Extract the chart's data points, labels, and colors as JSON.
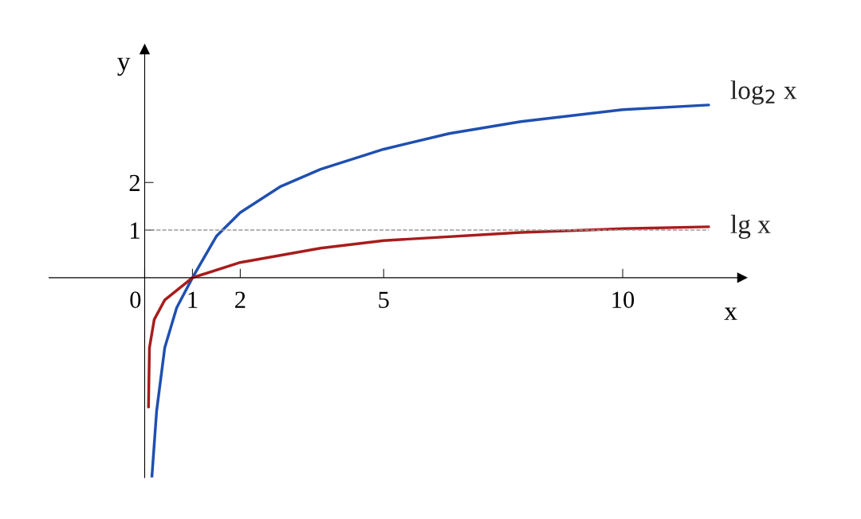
{
  "chart_data": {
    "type": "line",
    "xlabel": "x",
    "ylabel": "y",
    "xlim": [
      -2,
      12.5
    ],
    "ylim": [
      -4.2,
      4.8
    ],
    "xticks": [
      0,
      1,
      2,
      5,
      10
    ],
    "yticks": [
      1,
      2
    ],
    "legend": false,
    "grid": false,
    "line_style": "solid",
    "marker": "none",
    "ref_lines": [
      {
        "axis": "y",
        "value": 1,
        "color": "#999999",
        "line_style": "dashed"
      }
    ],
    "series": [
      {
        "name": "log$_{2}$ x",
        "color": "#1f4fb0",
        "x": [
          0.15,
          0.25,
          0.42,
          0.67,
          1,
          1.5,
          2,
          2.85,
          3.68,
          5,
          6.37,
          7.87,
          10,
          11.8
        ],
        "values": [
          -4.2,
          -2.8,
          -1.47,
          -0.63,
          0,
          0.87,
          1.37,
          1.92,
          2.28,
          2.7,
          3.03,
          3.28,
          3.53,
          3.63
        ]
      },
      {
        "name": "lg x",
        "color": "#a81c1c",
        "x": [
          0.08,
          0.1,
          0.2,
          0.42,
          1,
          2,
          3.68,
          5,
          7.87,
          10,
          11.8
        ],
        "values": [
          -2.72,
          -1.47,
          -0.88,
          -0.47,
          0,
          0.32,
          0.62,
          0.78,
          0.95,
          1.03,
          1.07
        ]
      }
    ]
  }
}
